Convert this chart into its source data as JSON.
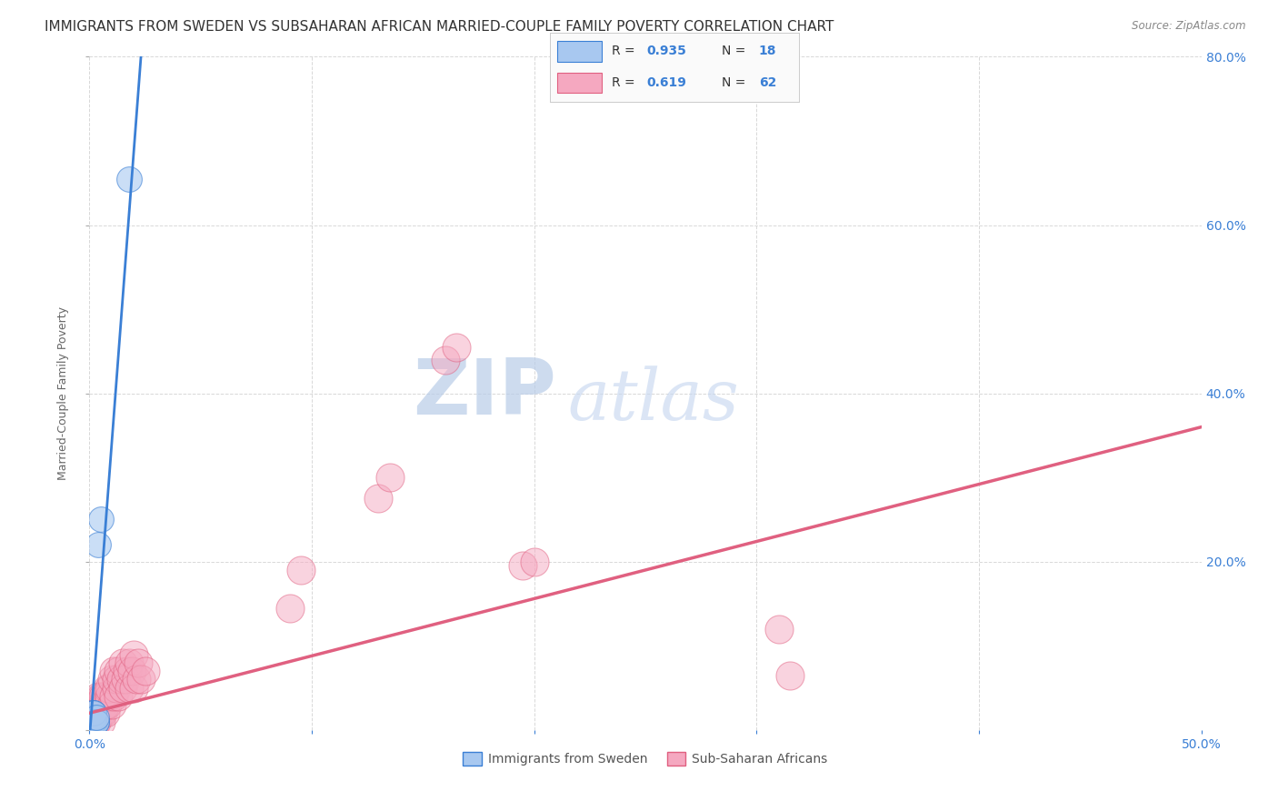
{
  "title": "IMMIGRANTS FROM SWEDEN VS SUBSAHARAN AFRICAN MARRIED-COUPLE FAMILY POVERTY CORRELATION CHART",
  "source": "Source: ZipAtlas.com",
  "ylabel": "Married-Couple Family Poverty",
  "xlim": [
    0.0,
    0.5
  ],
  "ylim": [
    0.0,
    0.8
  ],
  "xticks": [
    0.0,
    0.1,
    0.2,
    0.3,
    0.4,
    0.5
  ],
  "yticks": [
    0.0,
    0.2,
    0.4,
    0.6,
    0.8
  ],
  "right_ytick_labels": [
    "",
    "20.0%",
    "40.0%",
    "60.0%",
    "80.0%"
  ],
  "left_ytick_labels": [
    "",
    "",
    "",
    "",
    ""
  ],
  "xtick_labels_left": "0.0%",
  "xtick_labels_right": "50.0%",
  "sweden_R": 0.935,
  "sweden_N": 18,
  "subsaharan_R": 0.619,
  "subsaharan_N": 62,
  "sweden_color": "#a8c8f0",
  "subsaharan_color": "#f5a8c0",
  "sweden_line_color": "#3a7fd5",
  "subsaharan_line_color": "#e06080",
  "sweden_trendline_slope": 35.0,
  "sweden_trendline_intercept": -0.01,
  "subsaharan_trendline_slope": 0.68,
  "subsaharan_trendline_intercept": 0.02,
  "background_color": "#ffffff",
  "grid_color": "#d8d8d8",
  "sweden_points": [
    [
      0.001,
      0.005
    ],
    [
      0.001,
      0.01
    ],
    [
      0.001,
      0.01
    ],
    [
      0.001,
      0.01
    ],
    [
      0.001,
      0.015
    ],
    [
      0.001,
      0.02
    ],
    [
      0.002,
      0.005
    ],
    [
      0.002,
      0.01
    ],
    [
      0.002,
      0.01
    ],
    [
      0.002,
      0.015
    ],
    [
      0.002,
      0.02
    ],
    [
      0.002,
      0.02
    ],
    [
      0.003,
      0.01
    ],
    [
      0.003,
      0.01
    ],
    [
      0.003,
      0.015
    ],
    [
      0.004,
      0.22
    ],
    [
      0.005,
      0.25
    ],
    [
      0.018,
      0.655
    ]
  ],
  "subsaharan_points": [
    [
      0.001,
      0.005
    ],
    [
      0.001,
      0.01
    ],
    [
      0.001,
      0.015
    ],
    [
      0.002,
      0.005
    ],
    [
      0.002,
      0.01
    ],
    [
      0.002,
      0.01
    ],
    [
      0.002,
      0.02
    ],
    [
      0.002,
      0.02
    ],
    [
      0.003,
      0.01
    ],
    [
      0.003,
      0.01
    ],
    [
      0.003,
      0.02
    ],
    [
      0.003,
      0.03
    ],
    [
      0.004,
      0.02
    ],
    [
      0.004,
      0.02
    ],
    [
      0.004,
      0.03
    ],
    [
      0.004,
      0.04
    ],
    [
      0.005,
      0.01
    ],
    [
      0.005,
      0.02
    ],
    [
      0.005,
      0.03
    ],
    [
      0.005,
      0.04
    ],
    [
      0.006,
      0.02
    ],
    [
      0.006,
      0.03
    ],
    [
      0.006,
      0.04
    ],
    [
      0.007,
      0.02
    ],
    [
      0.007,
      0.03
    ],
    [
      0.007,
      0.04
    ],
    [
      0.008,
      0.03
    ],
    [
      0.008,
      0.05
    ],
    [
      0.009,
      0.04
    ],
    [
      0.009,
      0.05
    ],
    [
      0.01,
      0.03
    ],
    [
      0.01,
      0.06
    ],
    [
      0.011,
      0.04
    ],
    [
      0.011,
      0.07
    ],
    [
      0.012,
      0.05
    ],
    [
      0.012,
      0.06
    ],
    [
      0.013,
      0.04
    ],
    [
      0.013,
      0.07
    ],
    [
      0.014,
      0.06
    ],
    [
      0.015,
      0.05
    ],
    [
      0.015,
      0.08
    ],
    [
      0.016,
      0.06
    ],
    [
      0.017,
      0.07
    ],
    [
      0.018,
      0.05
    ],
    [
      0.018,
      0.08
    ],
    [
      0.019,
      0.07
    ],
    [
      0.02,
      0.05
    ],
    [
      0.02,
      0.09
    ],
    [
      0.021,
      0.06
    ],
    [
      0.022,
      0.08
    ],
    [
      0.023,
      0.06
    ],
    [
      0.025,
      0.07
    ],
    [
      0.09,
      0.145
    ],
    [
      0.095,
      0.19
    ],
    [
      0.13,
      0.275
    ],
    [
      0.135,
      0.3
    ],
    [
      0.16,
      0.44
    ],
    [
      0.165,
      0.455
    ],
    [
      0.195,
      0.195
    ],
    [
      0.2,
      0.2
    ],
    [
      0.31,
      0.12
    ],
    [
      0.315,
      0.065
    ]
  ],
  "watermark_zip": "ZIP",
  "watermark_atlas": "atlas",
  "watermark_color": "#c5d8f0",
  "title_fontsize": 11,
  "axis_label_fontsize": 9,
  "tick_fontsize": 10,
  "legend_label1": "Immigrants from Sweden",
  "legend_label2": "Sub-Saharan Africans"
}
